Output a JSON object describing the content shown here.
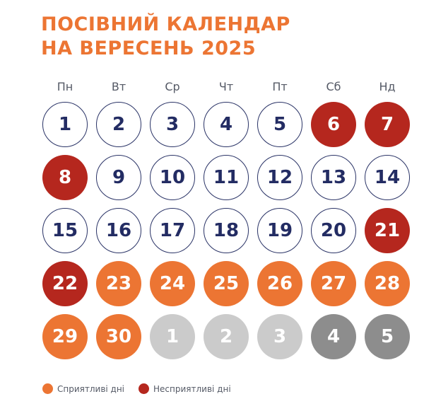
{
  "title": {
    "line1": "ПОСІВНИЙ КАЛЕНДАР",
    "line2": "НА ВЕРЕСЕНЬ 2025"
  },
  "colors": {
    "favorable": "#ec7533",
    "unfavorable": "#b5271e",
    "neutral_outline": "#2b3467",
    "next_month_light": "#cbcbcb",
    "next_month_dark": "#8d8d8d"
  },
  "weekdays": [
    "Пн",
    "Вт",
    "Ср",
    "Чт",
    "Пт",
    "Сб",
    "Нд"
  ],
  "days": [
    {
      "label": "1",
      "status": "normal"
    },
    {
      "label": "2",
      "status": "normal"
    },
    {
      "label": "3",
      "status": "normal"
    },
    {
      "label": "4",
      "status": "normal"
    },
    {
      "label": "5",
      "status": "normal"
    },
    {
      "label": "6",
      "status": "unfavorable"
    },
    {
      "label": "7",
      "status": "unfavorable"
    },
    {
      "label": "8",
      "status": "unfavorable"
    },
    {
      "label": "9",
      "status": "normal"
    },
    {
      "label": "10",
      "status": "normal"
    },
    {
      "label": "11",
      "status": "normal"
    },
    {
      "label": "12",
      "status": "normal"
    },
    {
      "label": "13",
      "status": "normal"
    },
    {
      "label": "14",
      "status": "normal"
    },
    {
      "label": "15",
      "status": "normal"
    },
    {
      "label": "16",
      "status": "normal"
    },
    {
      "label": "17",
      "status": "normal"
    },
    {
      "label": "18",
      "status": "normal"
    },
    {
      "label": "19",
      "status": "normal"
    },
    {
      "label": "20",
      "status": "normal"
    },
    {
      "label": "21",
      "status": "unfavorable"
    },
    {
      "label": "22",
      "status": "unfavorable"
    },
    {
      "label": "23",
      "status": "favorable"
    },
    {
      "label": "24",
      "status": "favorable"
    },
    {
      "label": "25",
      "status": "favorable"
    },
    {
      "label": "26",
      "status": "favorable"
    },
    {
      "label": "27",
      "status": "favorable"
    },
    {
      "label": "28",
      "status": "favorable"
    },
    {
      "label": "29",
      "status": "favorable"
    },
    {
      "label": "30",
      "status": "favorable"
    },
    {
      "label": "1",
      "status": "next-light"
    },
    {
      "label": "2",
      "status": "next-light"
    },
    {
      "label": "3",
      "status": "next-light"
    },
    {
      "label": "4",
      "status": "next-dark"
    },
    {
      "label": "5",
      "status": "next-dark"
    }
  ],
  "legend": {
    "favorable_label": "Сприятливі дні",
    "unfavorable_label": "Несприятливі дні"
  }
}
